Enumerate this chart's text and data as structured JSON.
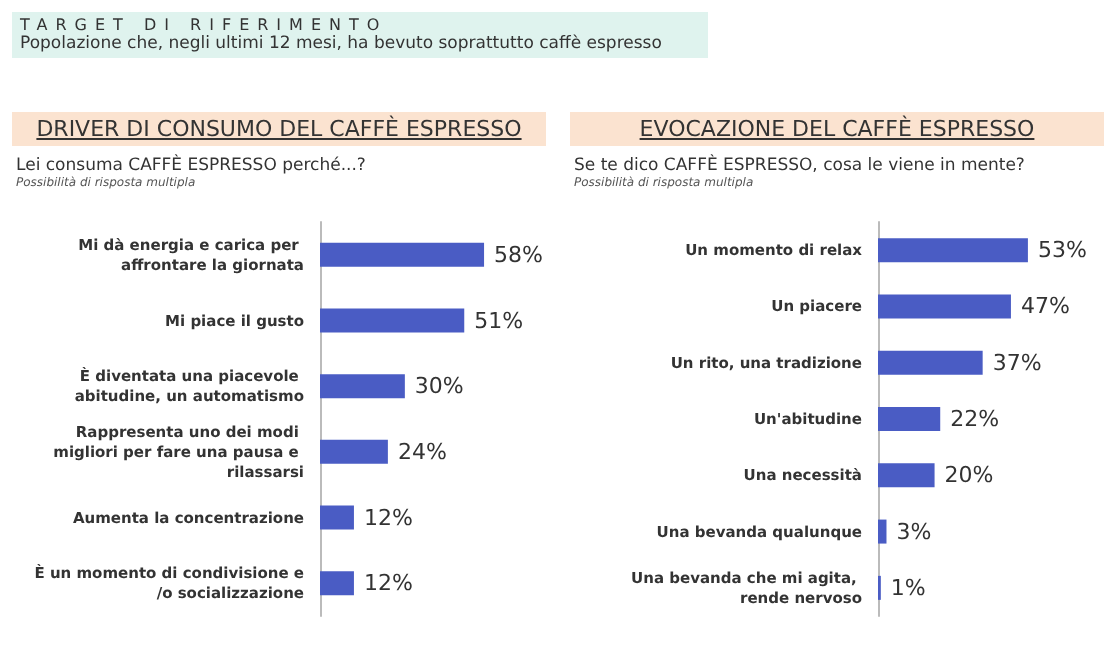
{
  "chart_data": [
    {
      "type": "bar",
      "orientation": "horizontal",
      "title": "DRIVER DI CONSUMO DEL CAFFÈ ESPRESSO",
      "subtitle": "Lei consuma CAFFÈ ESPRESSO perché...?",
      "annotations": [
        "TARGET DI RIFERIMENTO",
        "Popolazione che, negli ultimi 12 mesi, ha bevuto soprattutto caffè espresso",
        "Possibilità di risposta multipla"
      ],
      "categories": [
        "Mi dà energia e carica per affrontare la giornata",
        "Mi piace il gusto",
        "È diventata una piacevole abitudine, un automatismo",
        "Rappresenta uno dei modi migliori per fare una pausa e rilassarsi",
        "Aumenta la concentrazione",
        "È un momento di condivisione e/o socializzazione"
      ],
      "values": [
        58,
        51,
        30,
        24,
        12,
        12
      ],
      "value_labels": [
        "58%",
        "51%",
        "30%",
        "24%",
        "12%",
        "12%"
      ],
      "color": "#4a5cc4",
      "tick_labels": "y"
    },
    {
      "type": "bar",
      "orientation": "horizontal",
      "title": "EVOCAZIONE DEL CAFFÈ ESPRESSO",
      "subtitle": "Se te dico CAFFÈ ESPRESSO, cosa le viene in mente?",
      "annotations": [
        "Possibilità di risposta multipla"
      ],
      "categories": [
        "Un momento di relax",
        "Un piacere",
        "Un rito, una tradizione",
        "Un'abitudine",
        "Una necessità",
        "Una bevanda qualunque",
        "Una bevanda che mi agita, rende nervoso"
      ],
      "values": [
        53,
        47,
        37,
        22,
        20,
        3,
        1
      ],
      "value_labels": [
        "53%",
        "47%",
        "37%",
        "22%",
        "20%",
        "3%",
        "1%"
      ],
      "color": "#4a5cc4",
      "tick_labels": "y"
    }
  ]
}
